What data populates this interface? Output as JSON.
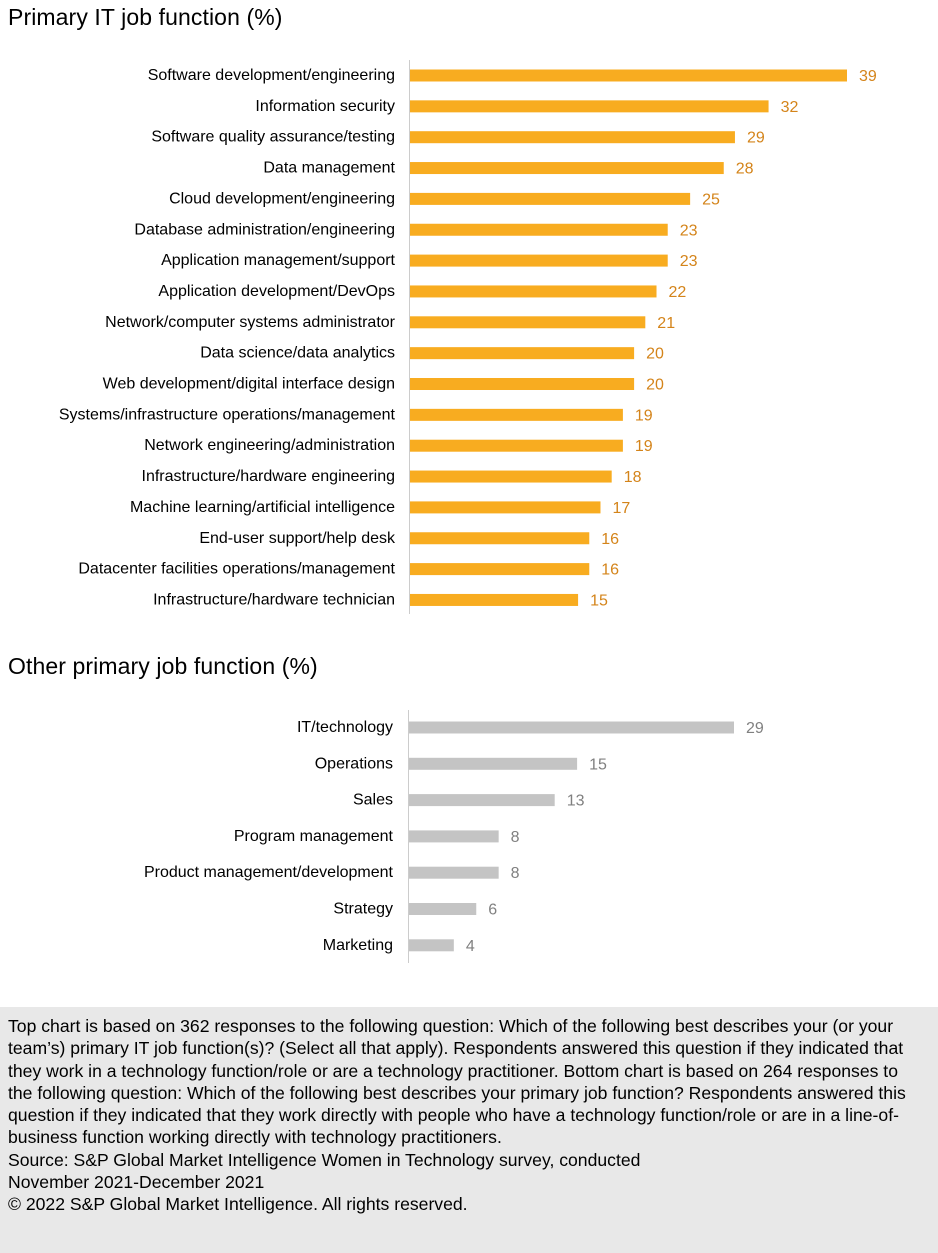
{
  "colors": {
    "top_bar": "#f8ac20",
    "top_value": "#d4841a",
    "bottom_bar": "#c4c4c4",
    "bottom_value": "#808080",
    "axis": "#cccccc",
    "footnote_bg": "#e8e8e8"
  },
  "chart_data": [
    {
      "type": "bar",
      "orientation": "horizontal",
      "title": "Primary IT job function (%)",
      "xlabel": "",
      "ylabel": "",
      "xlim": [
        0,
        39
      ],
      "categories": [
        "Software development/engineering",
        "Information security",
        "Software quality assurance/testing",
        "Data management",
        "Cloud development/engineering",
        "Database administration/engineering",
        "Application management/support",
        "Application development/DevOps",
        "Network/computer systems administrator",
        "Data science/data analytics",
        "Web development/digital interface design",
        "Systems/infrastructure operations/management",
        "Network engineering/administration",
        "Infrastructure/hardware engineering",
        "Machine learning/artificial intelligence",
        "End-user support/help desk",
        "Datacenter facilities operations/management",
        "Infrastructure/hardware technician"
      ],
      "values": [
        39,
        32,
        29,
        28,
        25,
        23,
        23,
        22,
        21,
        20,
        20,
        19,
        19,
        18,
        17,
        16,
        16,
        15
      ]
    },
    {
      "type": "bar",
      "orientation": "horizontal",
      "title": "Other primary job function (%)",
      "xlabel": "",
      "ylabel": "",
      "xlim": [
        0,
        29
      ],
      "categories": [
        "IT/technology",
        "Operations",
        "Sales",
        "Program management",
        "Product management/development",
        "Strategy",
        "Marketing"
      ],
      "values": [
        29,
        15,
        13,
        8,
        8,
        6,
        4
      ]
    }
  ],
  "footnote": {
    "text": "Top chart is based on 362 responses to the following question: Which of the following best describes your (or your team’s) primary IT job function(s)? (Select all that apply). Respondents answered this question if they indicated that they work in a technology function/role or are a technology practitioner. Bottom chart is based on 264 responses to the following question: Which of the following best describes your primary job function? Respondents answered this question if they indicated that they work directly with people who have a technology function/role or are in a line-of-business function working directly with technology practitioners.",
    "source_line1": "Source: S&P Global Market Intelligence Women in Technology survey, conducted",
    "source_line2": "November 2021-December 2021",
    "copyright": "© 2022 S&P Global Market Intelligence. All rights reserved."
  }
}
